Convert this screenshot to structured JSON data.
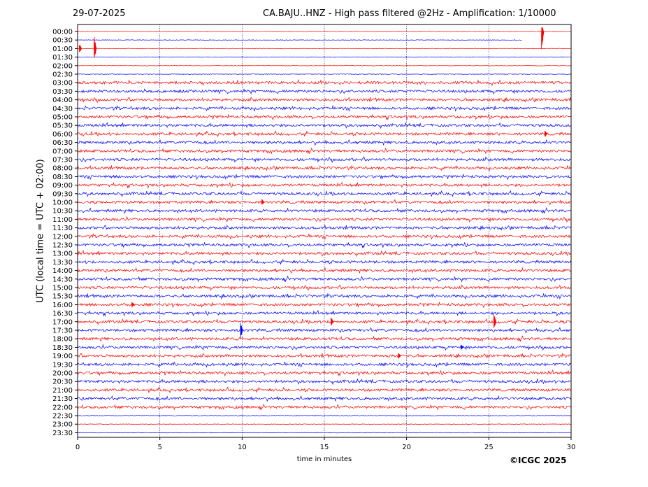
{
  "header": {
    "date": "29-07-2025",
    "title": "CA.BAJU..HNZ - High pass filtered @2Hz - Amplification: 1/10000"
  },
  "footer": {
    "copyright": "©ICGC 2025"
  },
  "colors": {
    "even_trace": "#ff0000",
    "odd_trace": "#0000ff",
    "grid": "#000080",
    "axes": "#000000"
  },
  "chart_data": {
    "type": "line",
    "title": "CA.BAJU..HNZ - High pass filtered @2Hz - Amplification: 1/10000",
    "xlabel": "time in minutes",
    "ylabel": "UTC (local time = UTC + 02:00)",
    "xlim": [
      0,
      30
    ],
    "xticks": [
      0,
      5,
      10,
      15,
      20,
      25,
      30
    ],
    "vertical_grid": [
      5,
      10,
      15,
      20,
      25
    ],
    "rows": [
      "00:00",
      "00:30",
      "01:00",
      "01:30",
      "02:00",
      "02:30",
      "03:00",
      "03:30",
      "04:00",
      "04:30",
      "05:00",
      "05:30",
      "06:00",
      "06:30",
      "07:00",
      "07:30",
      "08:00",
      "08:30",
      "09:00",
      "09:30",
      "10:00",
      "10:30",
      "11:00",
      "11:30",
      "12:00",
      "12:30",
      "13:00",
      "13:30",
      "14:00",
      "14:30",
      "15:00",
      "15:30",
      "16:00",
      "16:30",
      "17:00",
      "17:30",
      "18:00",
      "18:30",
      "19:00",
      "19:30",
      "20:00",
      "20:30",
      "21:00",
      "21:30",
      "22:00",
      "22:30",
      "23:00",
      "23:30"
    ],
    "row_colors": "alternating red / blue",
    "events": [
      {
        "row": "00:00",
        "minute": 28.2,
        "amplitude": 2.8,
        "direction": "down"
      },
      {
        "row": "01:00",
        "minute": 1.0,
        "amplitude": 1.6
      },
      {
        "row": "01:00",
        "minute": 0.1,
        "amplitude": 0.6
      },
      {
        "row": "06:00",
        "minute": 28.4,
        "amplitude": 0.5
      },
      {
        "row": "10:00",
        "minute": 11.2,
        "amplitude": 0.4
      },
      {
        "row": "16:00",
        "minute": 3.3,
        "amplitude": 0.4
      },
      {
        "row": "17:00",
        "minute": 15.4,
        "amplitude": 0.6
      },
      {
        "row": "17:00",
        "minute": 25.3,
        "amplitude": 1.0
      },
      {
        "row": "17:30",
        "minute": 9.9,
        "amplitude": 1.0
      },
      {
        "row": "18:30",
        "minute": 23.3,
        "amplitude": 0.4
      },
      {
        "row": "19:00",
        "minute": 19.5,
        "amplitude": 0.4
      }
    ]
  }
}
